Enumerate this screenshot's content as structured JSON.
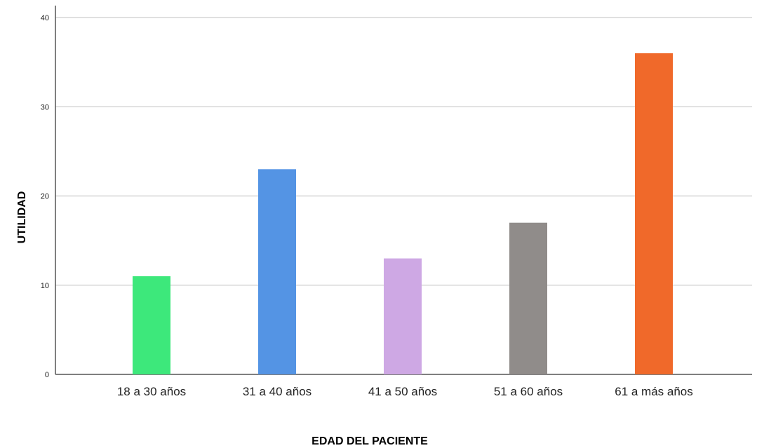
{
  "chart_data": {
    "type": "bar",
    "title": "",
    "xlabel": "EDAD DEL PACIENTE",
    "ylabel": "UTILIDAD",
    "categories": [
      "18 a 30 años",
      "31 a 40 años",
      "41 a 50 años",
      "51 a 60 años",
      "61 a más años"
    ],
    "values": [
      11,
      23,
      13,
      17,
      36
    ],
    "colors": [
      "#3DE87B",
      "#5494E4",
      "#CEA8E4",
      "#908C8A",
      "#F0692A"
    ],
    "ylim": [
      0,
      40
    ],
    "yticks": [
      "0",
      "10",
      "20",
      "30",
      "40"
    ],
    "grid": true,
    "legend": "none"
  }
}
